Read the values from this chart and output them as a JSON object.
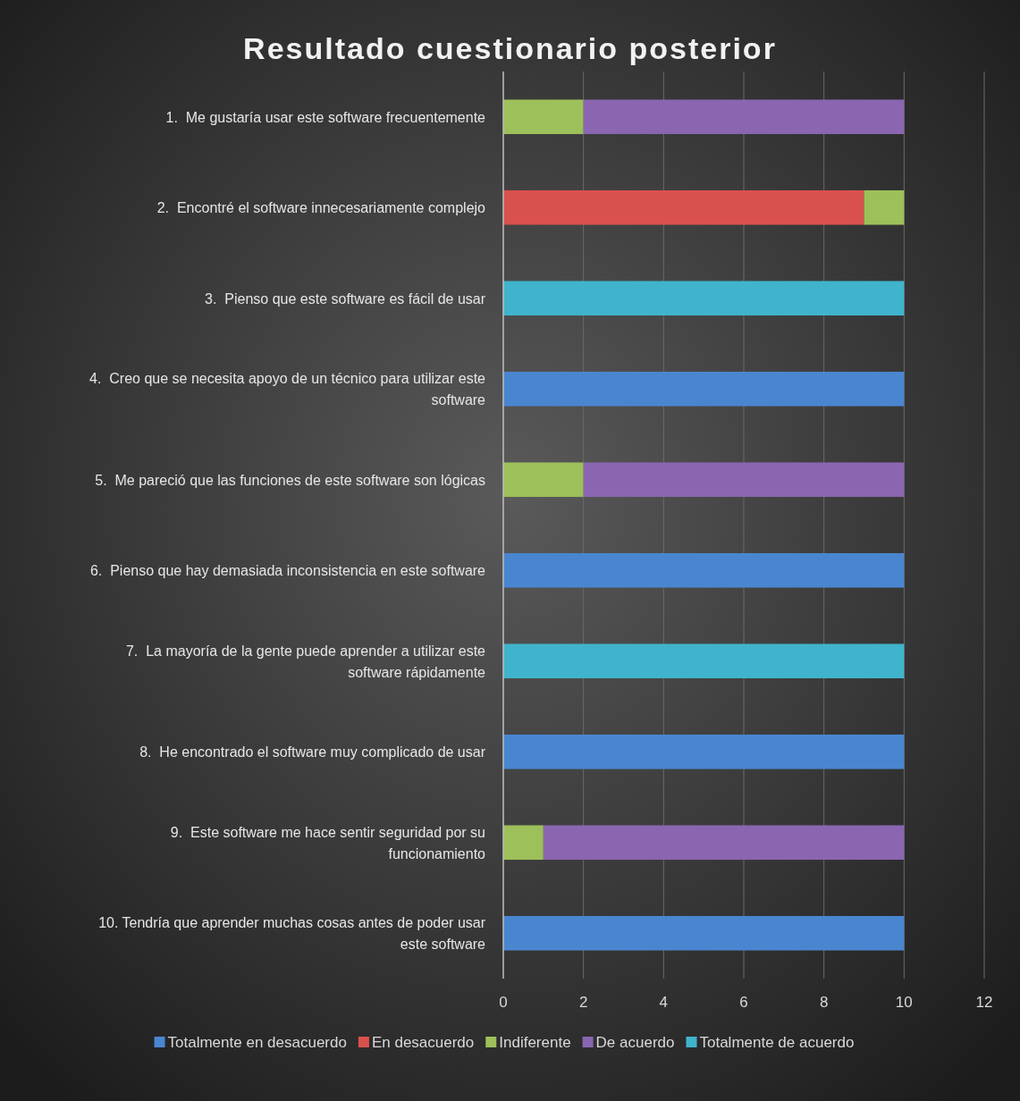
{
  "chart_data": {
    "type": "bar",
    "orientation": "horizontal",
    "stacked": true,
    "title": "Resultado cuestionario posterior",
    "categories": [
      "1.  Me gustaría usar este software frecuentemente",
      "2.  Encontré el software innecesariamente complejo",
      "3.  Pienso que este software es fácil de usar",
      "4.  Creo que se necesita apoyo de un técnico para utilizar este software",
      "5.  Me pareció que las funciones de este software son lógicas",
      "6.  Pienso que hay demasiada inconsistencia en este software",
      "7.  La mayoría de la gente puede aprender a utilizar este software rápidamente",
      "8.  He encontrado el software muy complicado de usar",
      "9.  Este software me hace sentir seguridad por su funcionamiento",
      "10. Tendría que aprender muchas cosas antes de poder usar este software"
    ],
    "series": [
      {
        "name": "Totalmente en desacuerdo",
        "color": "#4a86d0",
        "values": [
          0,
          0,
          0,
          10,
          0,
          10,
          0,
          10,
          0,
          10
        ]
      },
      {
        "name": "En desacuerdo",
        "color": "#d9514e",
        "values": [
          0,
          9,
          0,
          0,
          0,
          0,
          0,
          0,
          0,
          0
        ]
      },
      {
        "name": "Indiferente",
        "color": "#9dc05a",
        "values": [
          2,
          1,
          0,
          0,
          2,
          0,
          0,
          0,
          1,
          0
        ]
      },
      {
        "name": "De acuerdo",
        "color": "#8a66b0",
        "values": [
          8,
          0,
          0,
          0,
          8,
          0,
          0,
          0,
          9,
          0
        ]
      },
      {
        "name": "Totalmente de acuerdo",
        "color": "#40b4cc",
        "values": [
          0,
          0,
          10,
          0,
          0,
          0,
          10,
          0,
          0,
          0
        ]
      }
    ],
    "xlim": [
      0,
      12
    ],
    "xticks": [
      0,
      2,
      4,
      6,
      8,
      10,
      12
    ],
    "grid": "x",
    "legend": "bottom"
  }
}
